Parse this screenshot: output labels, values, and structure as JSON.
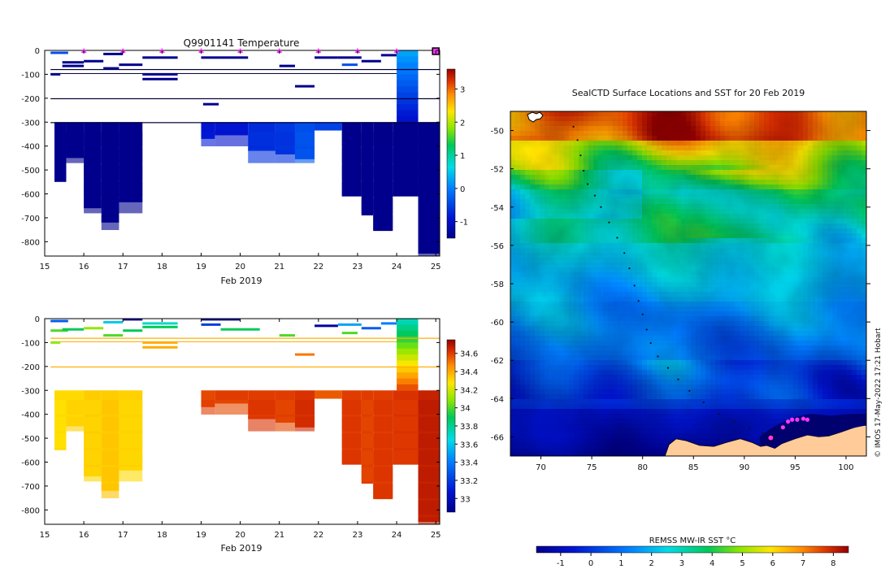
{
  "chart_data": [
    {
      "type": "heatmap",
      "title": "Q9901141  Temperature",
      "xlabel": "Feb 2019",
      "ylabel": "",
      "x_ticks": [
        "15",
        "16",
        "17",
        "18",
        "19",
        "20",
        "21",
        "22",
        "23",
        "24",
        "25"
      ],
      "y_ticks": [
        "0",
        "-100",
        "-200",
        "-300",
        "-400",
        "-500",
        "-600",
        "-700",
        "-800"
      ],
      "xlim": [
        15,
        25.1
      ],
      "ylim": [
        -860,
        0
      ],
      "colorbar": {
        "ticks": [
          "3",
          "2",
          "1",
          "0",
          "-1"
        ],
        "range": [
          -1.5,
          3.6
        ]
      },
      "markers_at": [
        16,
        17,
        18,
        19,
        20,
        21,
        22,
        23,
        24,
        25
      ],
      "marker_color": "#ff33ff",
      "deep_profiles": [
        {
          "x0": 15.25,
          "x1": 15.55,
          "bottom": -550,
          "value": -1.7
        },
        {
          "x0": 15.55,
          "x1": 16.0,
          "bottom": -450,
          "value": -1.7
        },
        {
          "x0": 16.0,
          "x1": 16.45,
          "bottom": -660,
          "value": -1.7
        },
        {
          "x0": 16.45,
          "x1": 16.9,
          "bottom": -720,
          "value": -1.7
        },
        {
          "x0": 16.9,
          "x1": 17.5,
          "bottom": -635,
          "value": -1.7
        },
        {
          "x0": 19.0,
          "x1": 19.35,
          "bottom": -370,
          "value": -0.9
        },
        {
          "x0": 19.35,
          "x1": 20.2,
          "bottom": -355,
          "value": -0.9
        },
        {
          "x0": 20.2,
          "x1": 20.9,
          "bottom": -420,
          "value": -0.7
        },
        {
          "x0": 20.9,
          "x1": 21.4,
          "bottom": -435,
          "value": -0.6
        },
        {
          "x0": 21.4,
          "x1": 21.9,
          "bottom": -455,
          "value": -0.4
        },
        {
          "x0": 21.9,
          "x1": 22.6,
          "bottom": -335,
          "value": -0.5
        },
        {
          "x0": 22.6,
          "x1": 23.1,
          "bottom": -610,
          "value": -1.7
        },
        {
          "x0": 23.1,
          "x1": 23.4,
          "bottom": -690,
          "value": -1.7
        },
        {
          "x0": 23.4,
          "x1": 23.9,
          "bottom": -755,
          "value": -1.7
        },
        {
          "x0": 23.9,
          "x1": 24.55,
          "bottom": -610,
          "value": -1.7
        },
        {
          "x0": 24.55,
          "x1": 25.1,
          "bottom": -850,
          "value": -1.7
        }
      ],
      "deep_top": -300,
      "surface_column": {
        "x0": 24.0,
        "x1": 24.55,
        "top": 0,
        "bottom": -300,
        "top_value": 0.3,
        "bottom_value": -1.0
      },
      "shallow_segments": [
        {
          "x0": 15.15,
          "x1": 15.6,
          "depth": -10,
          "value": -0.4
        },
        {
          "x0": 15.45,
          "x1": 16.0,
          "depth": -50,
          "value": -1.7
        },
        {
          "x0": 15.45,
          "x1": 16.0,
          "depth": -65,
          "value": -1.7
        },
        {
          "x0": 16.0,
          "x1": 16.5,
          "depth": -45,
          "value": -1.7
        },
        {
          "x0": 16.5,
          "x1": 17.0,
          "depth": -15,
          "value": -1.7
        },
        {
          "x0": 16.5,
          "x1": 16.9,
          "depth": -75,
          "value": -1.7
        },
        {
          "x0": 16.9,
          "x1": 17.5,
          "depth": -60,
          "value": -1.7
        },
        {
          "x0": 17.5,
          "x1": 18.4,
          "depth": -30,
          "value": -1.7
        },
        {
          "x0": 17.5,
          "x1": 18.4,
          "depth": -100,
          "value": -1.7
        },
        {
          "x0": 17.5,
          "x1": 18.4,
          "depth": -120,
          "value": -1.7
        },
        {
          "x0": 19.0,
          "x1": 19.5,
          "depth": -30,
          "value": -1.7
        },
        {
          "x0": 19.5,
          "x1": 20.2,
          "depth": -30,
          "value": -1.7
        },
        {
          "x0": 21.0,
          "x1": 21.4,
          "depth": -65,
          "value": -1.7
        },
        {
          "x0": 21.4,
          "x1": 21.9,
          "depth": -150,
          "value": -1.7
        },
        {
          "x0": 19.05,
          "x1": 19.45,
          "depth": -225,
          "value": -1.7
        },
        {
          "x0": 21.9,
          "x1": 22.5,
          "depth": -30,
          "value": -1.7
        },
        {
          "x0": 22.5,
          "x1": 23.1,
          "depth": -30,
          "value": -1.7
        },
        {
          "x0": 23.1,
          "x1": 23.6,
          "depth": -45,
          "value": -1.7
        },
        {
          "x0": 23.6,
          "x1": 24.0,
          "depth": -20,
          "value": -1.7
        },
        {
          "x0": 22.6,
          "x1": 23.0,
          "depth": -60,
          "value": -0.4
        },
        {
          "x0": 15.15,
          "x1": 15.4,
          "depth": -100,
          "value": -1.7
        }
      ],
      "full_lines": [
        -78,
        -200,
        -300
      ],
      "partial_lines": [
        {
          "x0": 15.15,
          "x1": 24.0,
          "depth": -95
        }
      ]
    },
    {
      "type": "heatmap",
      "title": "",
      "xlabel": "Feb 2019",
      "ylabel": "",
      "x_ticks": [
        "15",
        "16",
        "17",
        "18",
        "19",
        "20",
        "21",
        "22",
        "23",
        "24",
        "25"
      ],
      "y_ticks": [
        "0",
        "-100",
        "-200",
        "-300",
        "-400",
        "-500",
        "-600",
        "-700",
        "-800"
      ],
      "xlim": [
        15,
        25.1
      ],
      "ylim": [
        -860,
        0
      ],
      "colorbar": {
        "ticks": [
          "34.6",
          "34.4",
          "34.2",
          "34",
          "33.8",
          "33.6",
          "33.4",
          "33.2",
          "33"
        ],
        "range": [
          32.85,
          34.75
        ]
      },
      "deep_profiles": [
        {
          "x0": 15.25,
          "x1": 15.55,
          "bottom": -550,
          "value": 34.3
        },
        {
          "x0": 15.55,
          "x1": 16.0,
          "bottom": -450,
          "value": 34.3
        },
        {
          "x0": 16.0,
          "x1": 16.45,
          "bottom": -660,
          "value": 34.33
        },
        {
          "x0": 16.45,
          "x1": 16.9,
          "bottom": -720,
          "value": 34.33
        },
        {
          "x0": 16.9,
          "x1": 17.5,
          "bottom": -635,
          "value": 34.32
        },
        {
          "x0": 19.0,
          "x1": 19.35,
          "bottom": -370,
          "value": 34.58
        },
        {
          "x0": 19.35,
          "x1": 20.2,
          "bottom": -355,
          "value": 34.6
        },
        {
          "x0": 20.2,
          "x1": 20.9,
          "bottom": -420,
          "value": 34.6
        },
        {
          "x0": 20.9,
          "x1": 21.4,
          "bottom": -435,
          "value": 34.6
        },
        {
          "x0": 21.4,
          "x1": 21.9,
          "bottom": -455,
          "value": 34.62
        },
        {
          "x0": 21.9,
          "x1": 22.6,
          "bottom": -335,
          "value": 34.55
        },
        {
          "x0": 22.6,
          "x1": 23.1,
          "bottom": -610,
          "value": 34.6
        },
        {
          "x0": 23.1,
          "x1": 23.4,
          "bottom": -690,
          "value": 34.6
        },
        {
          "x0": 23.4,
          "x1": 23.9,
          "bottom": -755,
          "value": 34.6
        },
        {
          "x0": 23.9,
          "x1": 24.55,
          "bottom": -610,
          "value": 34.62
        },
        {
          "x0": 24.55,
          "x1": 25.1,
          "bottom": -850,
          "value": 34.66
        }
      ],
      "deep_top": -300,
      "surface_column": {
        "x0": 24.0,
        "x1": 24.55,
        "top": 0,
        "bottom": -300,
        "top_value": 33.7,
        "bottom_value": 34.6
      },
      "shallow_segments": [
        {
          "x0": 15.15,
          "x1": 15.6,
          "depth": -10,
          "value": 33.3
        },
        {
          "x0": 15.15,
          "x1": 15.6,
          "depth": -50,
          "value": 34.0
        },
        {
          "x0": 15.45,
          "x1": 16.0,
          "depth": -45,
          "value": 33.9
        },
        {
          "x0": 16.0,
          "x1": 16.5,
          "depth": -40,
          "value": 34.1
        },
        {
          "x0": 16.5,
          "x1": 17.0,
          "depth": -15,
          "value": 33.6
        },
        {
          "x0": 16.5,
          "x1": 17.0,
          "depth": -70,
          "value": 34.0
        },
        {
          "x0": 17.0,
          "x1": 17.5,
          "depth": -3,
          "value": 32.9
        },
        {
          "x0": 17.0,
          "x1": 17.5,
          "depth": -50,
          "value": 33.9
        },
        {
          "x0": 17.5,
          "x1": 18.4,
          "depth": -20,
          "value": 33.7
        },
        {
          "x0": 17.5,
          "x1": 18.4,
          "depth": -35,
          "value": 33.9
        },
        {
          "x0": 17.5,
          "x1": 18.4,
          "depth": -100,
          "value": 34.4
        },
        {
          "x0": 17.5,
          "x1": 18.4,
          "depth": -120,
          "value": 34.4
        },
        {
          "x0": 19.0,
          "x1": 20.0,
          "depth": -3,
          "value": 32.9
        },
        {
          "x0": 19.0,
          "x1": 19.5,
          "depth": -25,
          "value": 33.2
        },
        {
          "x0": 19.5,
          "x1": 20.5,
          "depth": -45,
          "value": 33.9
        },
        {
          "x0": 21.0,
          "x1": 21.4,
          "depth": -70,
          "value": 34.0
        },
        {
          "x0": 21.4,
          "x1": 21.9,
          "depth": -150,
          "value": 34.5
        },
        {
          "x0": 21.9,
          "x1": 22.5,
          "depth": -30,
          "value": 32.9
        },
        {
          "x0": 22.5,
          "x1": 23.1,
          "depth": -25,
          "value": 33.5
        },
        {
          "x0": 23.1,
          "x1": 23.6,
          "depth": -40,
          "value": 33.3
        },
        {
          "x0": 23.6,
          "x1": 24.0,
          "depth": -20,
          "value": 33.4
        },
        {
          "x0": 22.6,
          "x1": 23.0,
          "depth": -60,
          "value": 34.0
        },
        {
          "x0": 15.15,
          "x1": 15.4,
          "depth": -100,
          "value": 34.1
        }
      ],
      "full_lines": [
        -80,
        -200
      ],
      "line_color_value": 34.4,
      "partial_lines": [
        {
          "x0": 15.15,
          "x1": 24.0,
          "depth": -95
        }
      ]
    },
    {
      "type": "heatmap",
      "title": "SealCTD Surface Locations and SST for 20 Feb 2019",
      "xlabel": "",
      "ylabel": "",
      "x_ticks": [
        "70",
        "75",
        "80",
        "85",
        "90",
        "95",
        "100"
      ],
      "y_ticks": [
        "-50",
        "-52",
        "-54",
        "-56",
        "-58",
        "-60",
        "-62",
        "-64",
        "-66"
      ],
      "xlim": [
        67,
        102
      ],
      "ylim": [
        -67,
        -49
      ],
      "colorbar_label": "REMSS MW-IR SST °C",
      "colorbar": {
        "ticks": [
          "-1",
          "0",
          "1",
          "2",
          "3",
          "4",
          "5",
          "6",
          "7",
          "8"
        ],
        "range": [
          -1.8,
          8.5
        ]
      },
      "sst_field_note": "warm (6-8 °C) north of -54, green 2-3 °C mid latitudes, cyan 1 °C near -60, blue/navy near -64 to -67",
      "track": {
        "color": "#111111",
        "points_lon_lat": [
          [
            73.2,
            -49.8
          ],
          [
            73.6,
            -50.5
          ],
          [
            73.9,
            -51.3
          ],
          [
            74.2,
            -52.1
          ],
          [
            74.6,
            -52.8
          ],
          [
            75.3,
            -53.4
          ],
          [
            75.9,
            -54.0
          ],
          [
            76.7,
            -54.8
          ],
          [
            77.5,
            -55.6
          ],
          [
            78.2,
            -56.4
          ],
          [
            78.7,
            -57.2
          ],
          [
            79.2,
            -58.1
          ],
          [
            79.6,
            -58.9
          ],
          [
            80.0,
            -59.6
          ],
          [
            80.4,
            -60.4
          ],
          [
            80.8,
            -61.1
          ],
          [
            81.5,
            -61.8
          ],
          [
            82.5,
            -62.4
          ],
          [
            83.5,
            -63.0
          ],
          [
            84.6,
            -63.6
          ],
          [
            86.0,
            -64.2
          ],
          [
            87.5,
            -64.8
          ],
          [
            89.0,
            -65.2
          ],
          [
            90.5,
            -65.5
          ],
          [
            91.8,
            -65.8
          ],
          [
            92.8,
            -66.0
          ],
          [
            93.6,
            -65.6
          ]
        ]
      },
      "positions_highlight": {
        "color": "#ff33ff",
        "points_lon_lat": [
          [
            92.6,
            -66.05
          ],
          [
            93.8,
            -65.5
          ],
          [
            94.3,
            -65.2
          ],
          [
            94.7,
            -65.1
          ],
          [
            95.2,
            -65.1
          ],
          [
            95.8,
            -65.05
          ],
          [
            96.2,
            -65.1
          ]
        ]
      },
      "land_color": "#ffcc99",
      "watermark": "© IMOS 17-May-2022 17:21 Hobart"
    }
  ]
}
